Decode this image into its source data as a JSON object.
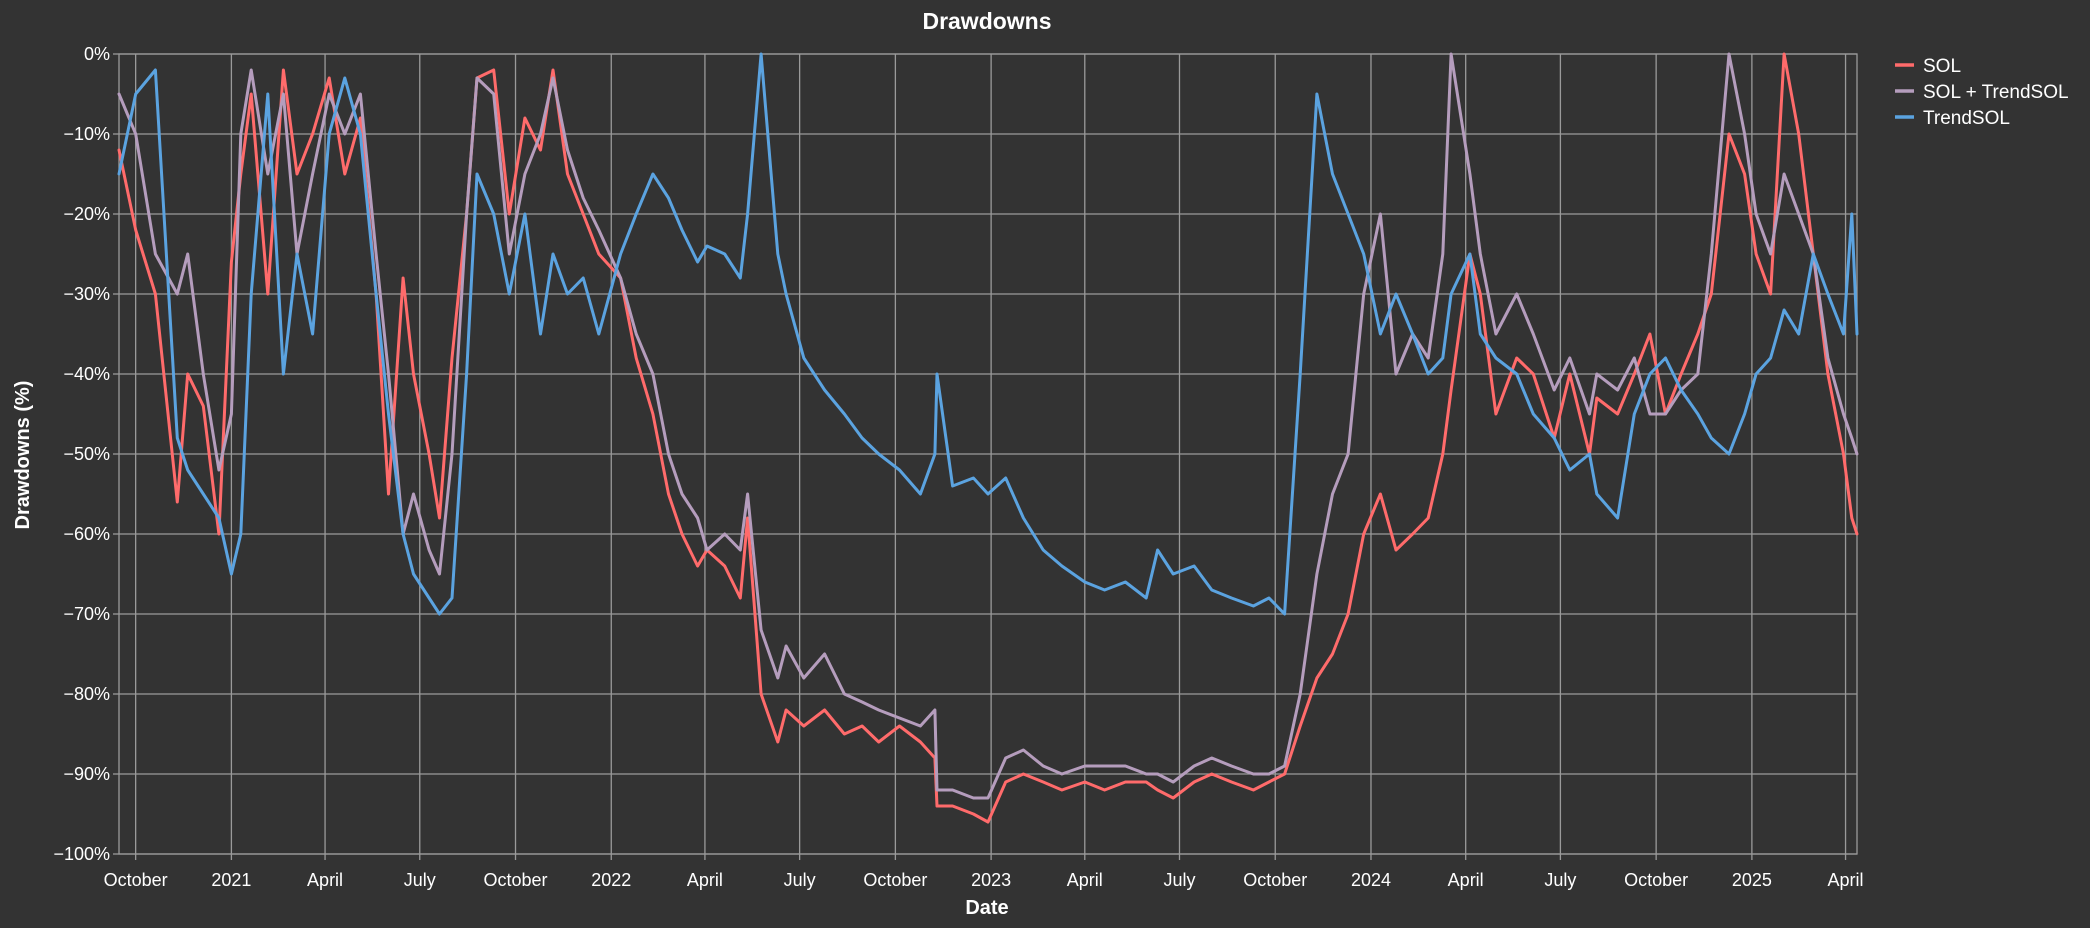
{
  "chart_data": {
    "type": "line",
    "title": "Drawdowns",
    "xlabel": "Date",
    "ylabel": "Drawdowns (%)",
    "x_range": [
      "2020-09-15",
      "2025-04-12"
    ],
    "ylim": [
      -100,
      0
    ],
    "y_ticks": [
      0,
      -10,
      -20,
      -30,
      -40,
      -50,
      -60,
      -70,
      -80,
      -90,
      -100
    ],
    "y_tick_labels": [
      "0%",
      "−10%",
      "−20%",
      "−30%",
      "−40%",
      "−50%",
      "−60%",
      "−70%",
      "−80%",
      "−90%",
      "−100%"
    ],
    "x_ticks": [
      {
        "date": "2020-10-01",
        "label": "October"
      },
      {
        "date": "2021-01-01",
        "label": "2021"
      },
      {
        "date": "2021-04-01",
        "label": "April"
      },
      {
        "date": "2021-07-01",
        "label": "July"
      },
      {
        "date": "2021-10-01",
        "label": "October"
      },
      {
        "date": "2022-01-01",
        "label": "2022"
      },
      {
        "date": "2022-04-01",
        "label": "April"
      },
      {
        "date": "2022-07-01",
        "label": "July"
      },
      {
        "date": "2022-10-01",
        "label": "October"
      },
      {
        "date": "2023-01-01",
        "label": "2023"
      },
      {
        "date": "2023-04-01",
        "label": "April"
      },
      {
        "date": "2023-07-01",
        "label": "July"
      },
      {
        "date": "2023-10-01",
        "label": "October"
      },
      {
        "date": "2024-01-01",
        "label": "2024"
      },
      {
        "date": "2024-04-01",
        "label": "April"
      },
      {
        "date": "2024-07-01",
        "label": "July"
      },
      {
        "date": "2024-10-01",
        "label": "October"
      },
      {
        "date": "2025-01-01",
        "label": "2025"
      },
      {
        "date": "2025-04-01",
        "label": "April"
      }
    ],
    "grid": true,
    "legend_position": "top-right",
    "series": [
      {
        "name": "SOL",
        "color": "#ff6b6b",
        "x": [
          "2020-09-15",
          "2020-10-01",
          "2020-10-20",
          "2020-11-10",
          "2020-11-20",
          "2020-12-05",
          "2020-12-20",
          "2021-01-01",
          "2021-01-10",
          "2021-01-20",
          "2021-02-05",
          "2021-02-20",
          "2021-03-05",
          "2021-03-20",
          "2021-04-05",
          "2021-04-20",
          "2021-05-05",
          "2021-05-20",
          "2021-06-01",
          "2021-06-15",
          "2021-06-25",
          "2021-07-10",
          "2021-07-20",
          "2021-08-01",
          "2021-08-15",
          "2021-08-25",
          "2021-09-10",
          "2021-09-25",
          "2021-10-10",
          "2021-10-25",
          "2021-11-06",
          "2021-11-20",
          "2021-12-05",
          "2021-12-20",
          "2022-01-10",
          "2022-01-25",
          "2022-02-10",
          "2022-02-25",
          "2022-03-10",
          "2022-03-25",
          "2022-04-03",
          "2022-04-20",
          "2022-05-05",
          "2022-05-12",
          "2022-05-25",
          "2022-06-10",
          "2022-06-18",
          "2022-07-05",
          "2022-07-25",
          "2022-08-13",
          "2022-08-30",
          "2022-09-15",
          "2022-10-05",
          "2022-10-25",
          "2022-11-08",
          "2022-11-10",
          "2022-11-25",
          "2022-12-15",
          "2022-12-29",
          "2023-01-15",
          "2023-02-01",
          "2023-02-20",
          "2023-03-10",
          "2023-04-01",
          "2023-04-20",
          "2023-05-10",
          "2023-05-30",
          "2023-06-10",
          "2023-06-25",
          "2023-07-15",
          "2023-08-01",
          "2023-08-20",
          "2023-09-10",
          "2023-09-25",
          "2023-10-10",
          "2023-10-25",
          "2023-11-10",
          "2023-11-25",
          "2023-12-10",
          "2023-12-25",
          "2024-01-10",
          "2024-01-25",
          "2024-02-10",
          "2024-02-25",
          "2024-03-10",
          "2024-03-18",
          "2024-04-05",
          "2024-04-15",
          "2024-04-30",
          "2024-05-20",
          "2024-06-05",
          "2024-06-25",
          "2024-07-10",
          "2024-07-29",
          "2024-08-05",
          "2024-08-25",
          "2024-09-10",
          "2024-09-25",
          "2024-10-10",
          "2024-10-25",
          "2024-11-10",
          "2024-11-23",
          "2024-12-10",
          "2024-12-25",
          "2025-01-05",
          "2025-01-19",
          "2025-02-01",
          "2025-02-15",
          "2025-03-01",
          "2025-03-15",
          "2025-03-30",
          "2025-04-07",
          "2025-04-12"
        ],
        "y": [
          -12,
          -22,
          -30,
          -56,
          -40,
          -44,
          -60,
          -26,
          -15,
          -5,
          -30,
          -2,
          -15,
          -10,
          -3,
          -15,
          -8,
          -30,
          -55,
          -28,
          -40,
          -50,
          -58,
          -38,
          -20,
          -3,
          -2,
          -20,
          -8,
          -12,
          -2,
          -15,
          -20,
          -25,
          -28,
          -38,
          -45,
          -55,
          -60,
          -64,
          -62,
          -64,
          -68,
          -58,
          -80,
          -86,
          -82,
          -84,
          -82,
          -85,
          -84,
          -86,
          -84,
          -86,
          -88,
          -94,
          -94,
          -95,
          -96,
          -91,
          -90,
          -91,
          -92,
          -91,
          -92,
          -91,
          -91,
          -92,
          -93,
          -91,
          -90,
          -91,
          -92,
          -91,
          -90,
          -84,
          -78,
          -75,
          -70,
          -60,
          -55,
          -62,
          -60,
          -58,
          -50,
          -42,
          -25,
          -30,
          -45,
          -38,
          -40,
          -48,
          -40,
          -50,
          -43,
          -45,
          -40,
          -35,
          -45,
          -40,
          -35,
          -30,
          -10,
          -15,
          -25,
          -30,
          0,
          -10,
          -25,
          -40,
          -50,
          -58,
          -60
        ]
      },
      {
        "name": "SOL + TrendSOL",
        "color": "#b59dbd",
        "x": [
          "2020-09-15",
          "2020-10-01",
          "2020-10-20",
          "2020-11-10",
          "2020-11-20",
          "2020-12-05",
          "2020-12-20",
          "2021-01-01",
          "2021-01-10",
          "2021-01-20",
          "2021-02-05",
          "2021-02-20",
          "2021-03-05",
          "2021-03-20",
          "2021-04-05",
          "2021-04-20",
          "2021-05-05",
          "2021-05-20",
          "2021-06-01",
          "2021-06-15",
          "2021-06-25",
          "2021-07-10",
          "2021-07-20",
          "2021-08-01",
          "2021-08-15",
          "2021-08-25",
          "2021-09-10",
          "2021-09-25",
          "2021-10-10",
          "2021-10-25",
          "2021-11-06",
          "2021-11-20",
          "2021-12-05",
          "2021-12-20",
          "2022-01-10",
          "2022-01-25",
          "2022-02-10",
          "2022-02-25",
          "2022-03-10",
          "2022-03-25",
          "2022-04-03",
          "2022-04-20",
          "2022-05-05",
          "2022-05-12",
          "2022-05-25",
          "2022-06-10",
          "2022-06-18",
          "2022-07-05",
          "2022-07-25",
          "2022-08-13",
          "2022-08-30",
          "2022-09-15",
          "2022-10-05",
          "2022-10-25",
          "2022-11-08",
          "2022-11-10",
          "2022-11-25",
          "2022-12-15",
          "2022-12-29",
          "2023-01-15",
          "2023-02-01",
          "2023-02-20",
          "2023-03-10",
          "2023-04-01",
          "2023-04-20",
          "2023-05-10",
          "2023-05-30",
          "2023-06-10",
          "2023-06-25",
          "2023-07-15",
          "2023-08-01",
          "2023-08-20",
          "2023-09-10",
          "2023-09-25",
          "2023-10-10",
          "2023-10-25",
          "2023-11-10",
          "2023-11-25",
          "2023-12-10",
          "2023-12-25",
          "2024-01-10",
          "2024-01-25",
          "2024-02-10",
          "2024-02-25",
          "2024-03-10",
          "2024-03-18",
          "2024-04-05",
          "2024-04-15",
          "2024-04-30",
          "2024-05-20",
          "2024-06-05",
          "2024-06-25",
          "2024-07-10",
          "2024-07-29",
          "2024-08-05",
          "2024-08-25",
          "2024-09-10",
          "2024-09-25",
          "2024-10-10",
          "2024-10-25",
          "2024-11-10",
          "2024-11-23",
          "2024-12-10",
          "2024-12-25",
          "2025-01-05",
          "2025-01-19",
          "2025-02-01",
          "2025-02-15",
          "2025-03-01",
          "2025-03-15",
          "2025-03-30",
          "2025-04-07",
          "2025-04-12"
        ],
        "y": [
          -5,
          -10,
          -25,
          -30,
          -25,
          -40,
          -52,
          -45,
          -10,
          -2,
          -15,
          -5,
          -25,
          -15,
          -5,
          -10,
          -5,
          -25,
          -40,
          -60,
          -55,
          -62,
          -65,
          -50,
          -20,
          -3,
          -5,
          -25,
          -15,
          -10,
          -3,
          -12,
          -18,
          -22,
          -28,
          -35,
          -40,
          -50,
          -55,
          -58,
          -62,
          -60,
          -62,
          -55,
          -72,
          -78,
          -74,
          -78,
          -75,
          -80,
          -81,
          -82,
          -83,
          -84,
          -82,
          -92,
          -92,
          -93,
          -93,
          -88,
          -87,
          -89,
          -90,
          -89,
          -89,
          -89,
          -90,
          -90,
          -91,
          -89,
          -88,
          -89,
          -90,
          -90,
          -89,
          -80,
          -65,
          -55,
          -50,
          -30,
          -20,
          -40,
          -35,
          -38,
          -25,
          0,
          -15,
          -25,
          -35,
          -30,
          -35,
          -42,
          -38,
          -45,
          -40,
          -42,
          -38,
          -45,
          -45,
          -42,
          -40,
          -25,
          0,
          -10,
          -20,
          -25,
          -15,
          -20,
          -25,
          -38,
          -45,
          -48,
          -50
        ]
      },
      {
        "name": "TrendSOL",
        "color": "#5ba3e0",
        "x": [
          "2020-09-15",
          "2020-10-01",
          "2020-10-20",
          "2020-11-10",
          "2020-11-20",
          "2020-12-05",
          "2020-12-20",
          "2021-01-01",
          "2021-01-10",
          "2021-01-20",
          "2021-02-05",
          "2021-02-20",
          "2021-03-05",
          "2021-03-20",
          "2021-04-05",
          "2021-04-20",
          "2021-05-05",
          "2021-05-20",
          "2021-06-01",
          "2021-06-15",
          "2021-06-25",
          "2021-07-10",
          "2021-07-20",
          "2021-08-01",
          "2021-08-15",
          "2021-08-25",
          "2021-09-10",
          "2021-09-25",
          "2021-10-10",
          "2021-10-25",
          "2021-11-06",
          "2021-11-20",
          "2021-12-05",
          "2021-12-20",
          "2022-01-10",
          "2022-01-25",
          "2022-02-10",
          "2022-02-25",
          "2022-03-10",
          "2022-03-25",
          "2022-04-03",
          "2022-04-20",
          "2022-05-05",
          "2022-05-12",
          "2022-05-25",
          "2022-06-10",
          "2022-06-18",
          "2022-07-05",
          "2022-07-25",
          "2022-08-13",
          "2022-08-30",
          "2022-09-15",
          "2022-10-05",
          "2022-10-25",
          "2022-11-08",
          "2022-11-10",
          "2022-11-25",
          "2022-12-15",
          "2022-12-29",
          "2023-01-15",
          "2023-02-01",
          "2023-02-20",
          "2023-03-10",
          "2023-04-01",
          "2023-04-20",
          "2023-05-10",
          "2023-05-30",
          "2023-06-10",
          "2023-06-25",
          "2023-07-15",
          "2023-08-01",
          "2023-08-20",
          "2023-09-10",
          "2023-09-25",
          "2023-10-10",
          "2023-10-25",
          "2023-11-10",
          "2023-11-25",
          "2023-12-10",
          "2023-12-25",
          "2024-01-10",
          "2024-01-25",
          "2024-02-10",
          "2024-02-25",
          "2024-03-10",
          "2024-03-18",
          "2024-04-05",
          "2024-04-15",
          "2024-04-30",
          "2024-05-20",
          "2024-06-05",
          "2024-06-25",
          "2024-07-10",
          "2024-07-29",
          "2024-08-05",
          "2024-08-25",
          "2024-09-10",
          "2024-09-25",
          "2024-10-10",
          "2024-10-25",
          "2024-11-10",
          "2024-11-23",
          "2024-12-10",
          "2024-12-25",
          "2025-01-05",
          "2025-01-19",
          "2025-02-01",
          "2025-02-15",
          "2025-03-01",
          "2025-03-15",
          "2025-03-30",
          "2025-04-07",
          "2025-04-12"
        ],
        "y": [
          -15,
          -5,
          -2,
          -48,
          -52,
          -55,
          -58,
          -65,
          -60,
          -30,
          -5,
          -40,
          -25,
          -35,
          -10,
          -3,
          -10,
          -30,
          -45,
          -60,
          -65,
          -68,
          -70,
          -68,
          -40,
          -15,
          -20,
          -30,
          -20,
          -35,
          -25,
          -30,
          -28,
          -35,
          -25,
          -20,
          -15,
          -18,
          -22,
          -26,
          -24,
          -25,
          -28,
          -20,
          0,
          -25,
          -30,
          -38,
          -42,
          -45,
          -48,
          -50,
          -52,
          -55,
          -50,
          -40,
          -54,
          -53,
          -55,
          -53,
          -58,
          -62,
          -64,
          -66,
          -67,
          -66,
          -68,
          -62,
          -65,
          -64,
          -67,
          -68,
          -69,
          -68,
          -70,
          -40,
          -5,
          -15,
          -20,
          -25,
          -35,
          -30,
          -35,
          -40,
          -38,
          -30,
          -25,
          -35,
          -38,
          -40,
          -45,
          -48,
          -52,
          -50,
          -55,
          -58,
          -45,
          -40,
          -38,
          -42,
          -45,
          -48,
          -50,
          -45,
          -40,
          -38,
          -32,
          -35,
          -25,
          -30,
          -35,
          -20,
          -35
        ]
      }
    ]
  }
}
